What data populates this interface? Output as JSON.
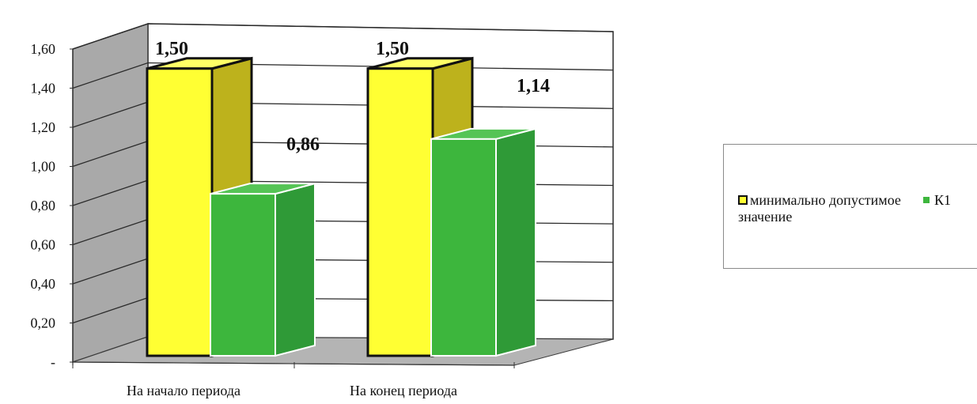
{
  "chart_data": {
    "type": "bar",
    "categories": [
      "На начало периода",
      "На конец периода"
    ],
    "series": [
      {
        "name": "минимально допустимое значение",
        "values": [
          1.5,
          1.5
        ],
        "color": "#ffff33"
      },
      {
        "name": "К1",
        "values": [
          0.86,
          1.14
        ],
        "color": "#3db63d"
      }
    ],
    "data_labels": [
      [
        "1,50",
        "1,50"
      ],
      [
        "0,86",
        "1,14"
      ]
    ],
    "ylim": [
      0,
      1.6
    ],
    "yticks": [
      0,
      0.2,
      0.4,
      0.6,
      0.8,
      1.0,
      1.2,
      1.4,
      1.6
    ],
    "ytick_labels": [
      "-",
      "0,20",
      "0,40",
      "0,60",
      "0,80",
      "1,00",
      "1,20",
      "1,40",
      "1,60"
    ],
    "title": "",
    "xlabel": "",
    "ylabel": "",
    "grid": true,
    "legend_position": "right",
    "style": "3d-clustered"
  }
}
